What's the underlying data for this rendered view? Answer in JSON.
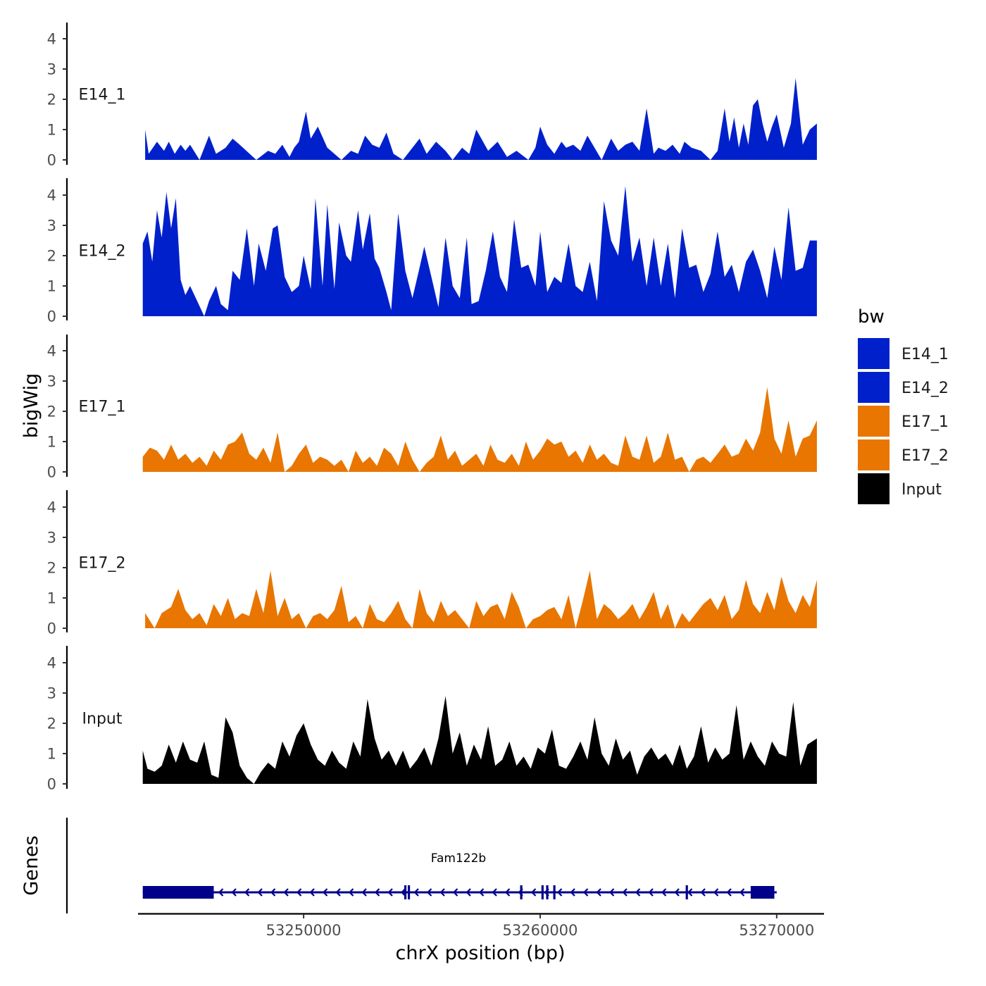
{
  "chart_data": {
    "type": "area",
    "subtype": "genome-browser-tracks",
    "title": "",
    "xlabel": "chrX position (bp)",
    "ylabel": "bigWig",
    "genes_axis_label": "Genes",
    "xlim": [
      53243000,
      53272000
    ],
    "ylim": [
      0,
      4.4
    ],
    "y_ticks": [
      0,
      1,
      2,
      3,
      4
    ],
    "x_ticks": [
      53250000,
      53260000,
      53270000
    ],
    "x_tick_labels": [
      "53250000",
      "53260000",
      "53270000"
    ],
    "legend": {
      "title": "bw",
      "position": "right",
      "entries": [
        {
          "label": "E14_1",
          "color": "#0020cc"
        },
        {
          "label": "E14_2",
          "color": "#0020cc"
        },
        {
          "label": "E17_1",
          "color": "#e87600"
        },
        {
          "label": "E17_2",
          "color": "#e87600"
        },
        {
          "label": "Input",
          "color": "#000000"
        }
      ]
    },
    "series": [
      {
        "name": "E14_1",
        "color": "#0020cc",
        "x": [
          53243300,
          53243450,
          53243800,
          53244100,
          53244300,
          53244550,
          53244800,
          53245000,
          53245200,
          53245600,
          53246000,
          53246300,
          53246700,
          53247000,
          53247300,
          53248000,
          53248500,
          53248800,
          53249100,
          53249400,
          53249600,
          53249800,
          53250100,
          53250300,
          53250600,
          53251000,
          53251600,
          53252000,
          53252300,
          53252600,
          53252900,
          53253200,
          53253500,
          53253800,
          53254200,
          53254600,
          53254900,
          53255200,
          53255600,
          53256000,
          53256300,
          53256700,
          53257000,
          53257300,
          53257800,
          53258200,
          53258600,
          53259000,
          53259500,
          53259800,
          53260000,
          53260300,
          53260600,
          53260900,
          53261100,
          53261400,
          53261700,
          53262000,
          53262600,
          53263000,
          53263300,
          53263600,
          53263900,
          53264200,
          53264500,
          53264800,
          53265000,
          53265300,
          53265600,
          53265900,
          53266100,
          53266400,
          53266800,
          53267200,
          53267500,
          53267800,
          53268000,
          53268200,
          53268400,
          53268600,
          53268800,
          53269000,
          53269200,
          53269400,
          53269600,
          53269800,
          53270000,
          53270300,
          53270600,
          53270800,
          53271100,
          53271400,
          53271700
        ],
        "y": [
          1.0,
          0.2,
          0.6,
          0.3,
          0.6,
          0.2,
          0.5,
          0.3,
          0.5,
          0.0,
          0.8,
          0.2,
          0.4,
          0.7,
          0.5,
          0.0,
          0.3,
          0.2,
          0.5,
          0.1,
          0.4,
          0.6,
          1.6,
          0.7,
          1.1,
          0.4,
          0.0,
          0.3,
          0.2,
          0.8,
          0.5,
          0.4,
          0.9,
          0.2,
          0.0,
          0.4,
          0.7,
          0.2,
          0.6,
          0.3,
          0.0,
          0.4,
          0.2,
          1.0,
          0.3,
          0.6,
          0.1,
          0.3,
          0.0,
          0.4,
          1.1,
          0.5,
          0.2,
          0.6,
          0.4,
          0.5,
          0.3,
          0.8,
          0.0,
          0.7,
          0.3,
          0.5,
          0.6,
          0.3,
          1.7,
          0.2,
          0.4,
          0.3,
          0.5,
          0.2,
          0.6,
          0.4,
          0.3,
          0.0,
          0.3,
          1.7,
          0.6,
          1.4,
          0.4,
          1.2,
          0.5,
          1.8,
          2.0,
          1.2,
          0.6,
          1.1,
          1.5,
          0.4,
          1.2,
          2.7,
          0.5,
          1.0,
          1.2
        ]
      },
      {
        "name": "E14_2",
        "color": "#0020cc",
        "x": [
          53243200,
          53243400,
          53243600,
          53243800,
          53244000,
          53244200,
          53244400,
          53244600,
          53244800,
          53245000,
          53245200,
          53245500,
          53245800,
          53246000,
          53246300,
          53246500,
          53246800,
          53247000,
          53247300,
          53247600,
          53247900,
          53248100,
          53248400,
          53248700,
          53248900,
          53249200,
          53249500,
          53249800,
          53250000,
          53250300,
          53250500,
          53250800,
          53251000,
          53251300,
          53251500,
          53251800,
          53252000,
          53252300,
          53252500,
          53252800,
          53253000,
          53253200,
          53253500,
          53253700,
          53254000,
          53254300,
          53254600,
          53254900,
          53255100,
          53255400,
          53255700,
          53256000,
          53256300,
          53256600,
          53256900,
          53257100,
          53257400,
          53257700,
          53258000,
          53258300,
          53258600,
          53258900,
          53259200,
          53259500,
          53259800,
          53260000,
          53260300,
          53260600,
          53260900,
          53261200,
          53261500,
          53261800,
          53262100,
          53262400,
          53262700,
          53263000,
          53263300,
          53263600,
          53263900,
          53264200,
          53264500,
          53264800,
          53265100,
          53265400,
          53265700,
          53266000,
          53266300,
          53266600,
          53266900,
          53267200,
          53267500,
          53267800,
          53268100,
          53268400,
          53268700,
          53269000,
          53269300,
          53269600,
          53269900,
          53270200,
          53270500,
          53270800,
          53271100,
          53271400,
          53271700
        ],
        "y": [
          2.4,
          2.8,
          1.8,
          3.5,
          2.6,
          4.1,
          2.9,
          3.9,
          1.2,
          0.7,
          1.0,
          0.5,
          0.0,
          0.5,
          1.0,
          0.4,
          0.2,
          1.5,
          1.2,
          2.9,
          1.0,
          2.4,
          1.5,
          2.9,
          3.0,
          1.3,
          0.8,
          1.0,
          2.0,
          0.9,
          3.9,
          1.0,
          3.7,
          0.9,
          3.1,
          2.0,
          1.8,
          3.5,
          2.2,
          3.4,
          1.9,
          1.6,
          0.8,
          0.2,
          3.4,
          1.5,
          0.6,
          1.6,
          2.3,
          1.3,
          0.3,
          2.6,
          1.0,
          0.6,
          2.6,
          0.4,
          0.5,
          1.5,
          2.8,
          1.3,
          0.8,
          3.2,
          1.6,
          1.7,
          1.0,
          2.8,
          0.8,
          1.3,
          1.1,
          2.4,
          1.0,
          0.8,
          1.8,
          0.5,
          3.8,
          2.5,
          2.0,
          4.3,
          1.8,
          2.6,
          1.0,
          2.6,
          1.0,
          2.4,
          0.6,
          2.9,
          1.6,
          1.7,
          0.8,
          1.4,
          2.8,
          1.3,
          1.7,
          0.8,
          1.8,
          2.2,
          1.5,
          0.6,
          2.3,
          1.2,
          3.6,
          1.5,
          1.6,
          2.5,
          2.5
        ]
      },
      {
        "name": "E17_1",
        "color": "#e87600",
        "x": [
          53243200,
          53243500,
          53243800,
          53244100,
          53244400,
          53244700,
          53245000,
          53245300,
          53245600,
          53245900,
          53246200,
          53246500,
          53246800,
          53247100,
          53247400,
          53247700,
          53248000,
          53248300,
          53248600,
          53248900,
          53249200,
          53249500,
          53249800,
          53250100,
          53250400,
          53250700,
          53251000,
          53251300,
          53251600,
          53251900,
          53252200,
          53252500,
          53252800,
          53253100,
          53253400,
          53253700,
          53254000,
          53254300,
          53254600,
          53254900,
          53255200,
          53255500,
          53255800,
          53256100,
          53256400,
          53256700,
          53257000,
          53257300,
          53257600,
          53257900,
          53258200,
          53258500,
          53258800,
          53259100,
          53259400,
          53259700,
          53260000,
          53260300,
          53260600,
          53260900,
          53261200,
          53261500,
          53261800,
          53262100,
          53262400,
          53262700,
          53263000,
          53263300,
          53263600,
          53263900,
          53264200,
          53264500,
          53264800,
          53265100,
          53265400,
          53265700,
          53266000,
          53266300,
          53266600,
          53266900,
          53267200,
          53267500,
          53267800,
          53268100,
          53268400,
          53268700,
          53269000,
          53269300,
          53269600,
          53269900,
          53270200,
          53270500,
          53270800,
          53271100,
          53271400,
          53271700
        ],
        "y": [
          0.5,
          0.8,
          0.7,
          0.4,
          0.9,
          0.4,
          0.6,
          0.3,
          0.5,
          0.2,
          0.7,
          0.4,
          0.9,
          1.0,
          1.3,
          0.6,
          0.4,
          0.8,
          0.3,
          1.3,
          0.0,
          0.2,
          0.6,
          0.9,
          0.3,
          0.5,
          0.4,
          0.2,
          0.4,
          0.0,
          0.7,
          0.3,
          0.5,
          0.2,
          0.8,
          0.6,
          0.2,
          1.0,
          0.4,
          0.0,
          0.3,
          0.5,
          1.2,
          0.4,
          0.7,
          0.2,
          0.4,
          0.6,
          0.2,
          0.9,
          0.4,
          0.3,
          0.6,
          0.2,
          1.0,
          0.4,
          0.7,
          1.1,
          0.9,
          1.0,
          0.5,
          0.7,
          0.3,
          0.9,
          0.4,
          0.6,
          0.3,
          0.2,
          1.2,
          0.5,
          0.4,
          1.2,
          0.3,
          0.5,
          1.3,
          0.4,
          0.5,
          0.0,
          0.4,
          0.5,
          0.3,
          0.6,
          0.9,
          0.5,
          0.6,
          1.1,
          0.7,
          1.3,
          2.8,
          1.1,
          0.6,
          1.7,
          0.5,
          1.1,
          1.2,
          1.7
        ]
      },
      {
        "name": "E17_2",
        "color": "#e87600",
        "x": [
          53243300,
          53243700,
          53244000,
          53244400,
          53244700,
          53245000,
          53245300,
          53245600,
          53245900,
          53246200,
          53246500,
          53246800,
          53247100,
          53247400,
          53247700,
          53248000,
          53248300,
          53248600,
          53248900,
          53249200,
          53249500,
          53249800,
          53250100,
          53250400,
          53250700,
          53251000,
          53251300,
          53251600,
          53251900,
          53252200,
          53252500,
          53252800,
          53253100,
          53253400,
          53253700,
          53254000,
          53254300,
          53254600,
          53254900,
          53255200,
          53255500,
          53255800,
          53256100,
          53256400,
          53256700,
          53257000,
          53257300,
          53257600,
          53257900,
          53258200,
          53258500,
          53258800,
          53259100,
          53259400,
          53259700,
          53260000,
          53260300,
          53260600,
          53260900,
          53261200,
          53261500,
          53261800,
          53262100,
          53262400,
          53262700,
          53263000,
          53263300,
          53263600,
          53263900,
          53264200,
          53264500,
          53264800,
          53265100,
          53265400,
          53265700,
          53266000,
          53266300,
          53266600,
          53266900,
          53267200,
          53267500,
          53267800,
          53268100,
          53268400,
          53268700,
          53269000,
          53269300,
          53269600,
          53269900,
          53270200,
          53270500,
          53270800,
          53271100,
          53271400,
          53271700
        ],
        "y": [
          0.5,
          0.0,
          0.5,
          0.7,
          1.3,
          0.6,
          0.3,
          0.5,
          0.1,
          0.8,
          0.4,
          1.0,
          0.3,
          0.5,
          0.4,
          1.3,
          0.5,
          1.9,
          0.4,
          1.0,
          0.3,
          0.5,
          0.0,
          0.4,
          0.5,
          0.3,
          0.6,
          1.4,
          0.2,
          0.4,
          0.0,
          0.8,
          0.3,
          0.2,
          0.5,
          0.9,
          0.3,
          0.0,
          1.3,
          0.5,
          0.2,
          0.9,
          0.4,
          0.6,
          0.3,
          0.0,
          0.9,
          0.4,
          0.7,
          0.8,
          0.3,
          1.2,
          0.7,
          0.0,
          0.3,
          0.4,
          0.6,
          0.7,
          0.3,
          1.1,
          0.0,
          0.9,
          1.9,
          0.3,
          0.8,
          0.6,
          0.3,
          0.5,
          0.8,
          0.3,
          0.7,
          1.2,
          0.3,
          0.8,
          0.0,
          0.5,
          0.2,
          0.5,
          0.8,
          1.0,
          0.6,
          1.1,
          0.3,
          0.6,
          1.6,
          0.8,
          0.5,
          1.2,
          0.6,
          1.7,
          0.9,
          0.5,
          1.1,
          0.7,
          1.6
        ]
      },
      {
        "name": "Input",
        "color": "#000000",
        "x": [
          53243200,
          53243400,
          53243700,
          53244000,
          53244300,
          53244600,
          53244900,
          53245200,
          53245500,
          53245800,
          53246100,
          53246400,
          53246700,
          53247000,
          53247300,
          53247600,
          53247900,
          53248200,
          53248500,
          53248800,
          53249100,
          53249400,
          53249700,
          53250000,
          53250300,
          53250600,
          53250900,
          53251200,
          53251500,
          53251800,
          53252100,
          53252400,
          53252700,
          53253000,
          53253300,
          53253600,
          53253900,
          53254200,
          53254500,
          53254800,
          53255100,
          53255400,
          53255700,
          53256000,
          53256300,
          53256600,
          53256900,
          53257200,
          53257500,
          53257800,
          53258100,
          53258400,
          53258700,
          53259000,
          53259300,
          53259600,
          53259900,
          53260200,
          53260500,
          53260800,
          53261100,
          53261400,
          53261700,
          53262000,
          53262300,
          53262600,
          53262900,
          53263200,
          53263500,
          53263800,
          53264100,
          53264400,
          53264700,
          53265000,
          53265300,
          53265600,
          53265900,
          53266200,
          53266500,
          53266800,
          53267100,
          53267400,
          53267700,
          53268000,
          53268300,
          53268600,
          53268900,
          53269200,
          53269500,
          53269800,
          53270100,
          53270400,
          53270700,
          53271000,
          53271300,
          53271700
        ],
        "y": [
          1.1,
          0.5,
          0.4,
          0.6,
          1.3,
          0.7,
          1.4,
          0.8,
          0.7,
          1.4,
          0.3,
          0.2,
          2.2,
          1.7,
          0.6,
          0.2,
          0.0,
          0.4,
          0.7,
          0.5,
          1.4,
          0.9,
          1.6,
          2.0,
          1.3,
          0.8,
          0.6,
          1.1,
          0.7,
          0.5,
          1.4,
          0.9,
          2.8,
          1.5,
          0.8,
          1.1,
          0.6,
          1.1,
          0.5,
          0.8,
          1.2,
          0.6,
          1.5,
          2.9,
          1.0,
          1.7,
          0.6,
          1.3,
          0.8,
          1.9,
          0.6,
          0.8,
          1.4,
          0.6,
          0.9,
          0.5,
          1.2,
          1.0,
          1.8,
          0.6,
          0.5,
          0.9,
          1.4,
          0.8,
          2.2,
          1.0,
          0.6,
          1.5,
          0.8,
          1.1,
          0.3,
          0.9,
          1.2,
          0.8,
          1.0,
          0.6,
          1.3,
          0.5,
          0.9,
          1.9,
          0.7,
          1.2,
          0.8,
          1.0,
          2.6,
          0.8,
          1.4,
          0.9,
          0.6,
          1.4,
          1.0,
          0.9,
          2.7,
          0.6,
          1.3,
          1.5
        ]
      }
    ],
    "gene": {
      "name": "Fam122b",
      "strand": "-",
      "start": 53243200,
      "end": 53270000,
      "thick_blocks": [
        [
          53243200,
          53246200
        ],
        [
          53268900,
          53269900
        ]
      ],
      "exon_marks": [
        53254300,
        53254450,
        53259200,
        53260100,
        53260300,
        53260600,
        53266200
      ]
    }
  }
}
